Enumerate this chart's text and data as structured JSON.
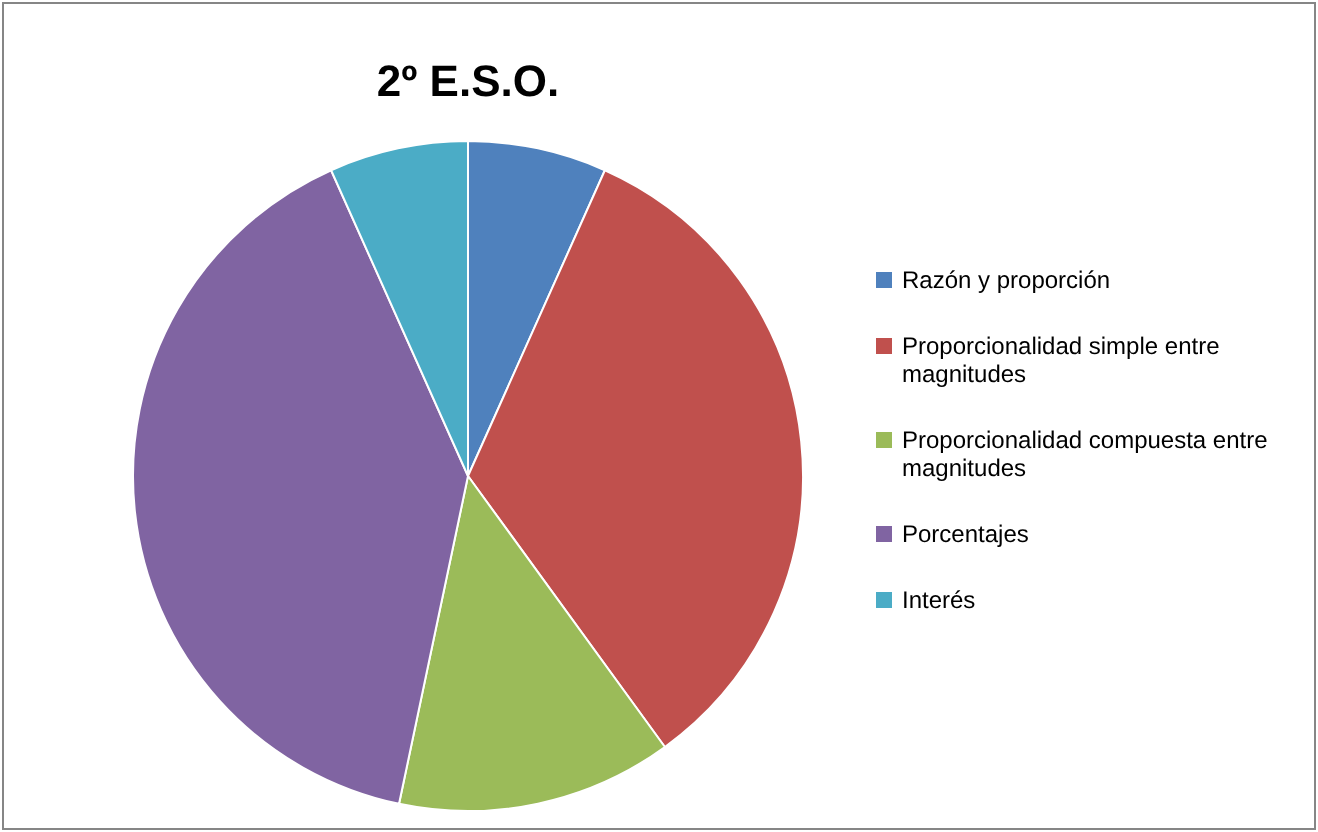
{
  "chart_data": {
    "type": "pie",
    "title": "2º E.S.O.",
    "categories": [
      "Razón y proporción",
      "Proporcionalidad simple entre magnitudes",
      "Proporcionalidad compuesta entre magnitudes",
      "Porcentajes",
      "Interés"
    ],
    "values": [
      6.7,
      33.3,
      13.3,
      40,
      6.7
    ],
    "colors": [
      "#4f81bd",
      "#c0504d",
      "#9bbb59",
      "#8064a2",
      "#4bacc6"
    ],
    "legend": "right"
  }
}
